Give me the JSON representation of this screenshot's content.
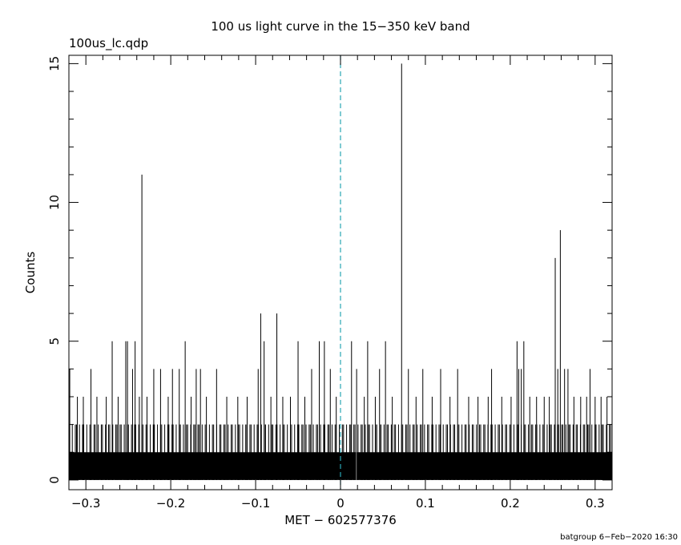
{
  "chart_data": {
    "type": "bar",
    "title": "100 us light curve in the 15−350 keV band",
    "file_label": "100us_lc.qdp",
    "xlabel": "MET − 602577376",
    "ylabel": "Counts",
    "footer": "batgroup  6−Feb−2020 16:30",
    "xlim": [
      -0.32,
      0.32
    ],
    "ylim": [
      -0.35,
      15.3
    ],
    "x_ticks": [
      -0.3,
      -0.2,
      -0.1,
      0,
      0.1,
      0.2,
      0.3
    ],
    "x_tick_labels": [
      "−0.3",
      "−0.2",
      "−0.1",
      "0",
      "0.1",
      "0.2",
      "0.3"
    ],
    "y_ticks": [
      0,
      5,
      10,
      15
    ],
    "y_tick_labels": [
      "0",
      "5",
      "10",
      "15"
    ],
    "bin_width": 0.0001,
    "baseline_counts": 1,
    "notable_bins": [
      {
        "x": -0.319,
        "y": 4
      },
      {
        "x": -0.31,
        "y": 3
      },
      {
        "x": -0.303,
        "y": 3
      },
      {
        "x": -0.294,
        "y": 4
      },
      {
        "x": -0.287,
        "y": 3
      },
      {
        "x": -0.276,
        "y": 3
      },
      {
        "x": -0.269,
        "y": 5
      },
      {
        "x": -0.262,
        "y": 3
      },
      {
        "x": -0.253,
        "y": 5
      },
      {
        "x": -0.251,
        "y": 5
      },
      {
        "x": -0.245,
        "y": 4
      },
      {
        "x": -0.242,
        "y": 5
      },
      {
        "x": -0.237,
        "y": 3
      },
      {
        "x": -0.234,
        "y": 11
      },
      {
        "x": -0.228,
        "y": 3
      },
      {
        "x": -0.22,
        "y": 4
      },
      {
        "x": -0.212,
        "y": 4
      },
      {
        "x": -0.203,
        "y": 3
      },
      {
        "x": -0.198,
        "y": 4
      },
      {
        "x": -0.19,
        "y": 4
      },
      {
        "x": -0.183,
        "y": 5
      },
      {
        "x": -0.176,
        "y": 3
      },
      {
        "x": -0.17,
        "y": 4
      },
      {
        "x": -0.165,
        "y": 4
      },
      {
        "x": -0.158,
        "y": 3
      },
      {
        "x": -0.146,
        "y": 4
      },
      {
        "x": -0.134,
        "y": 3
      },
      {
        "x": -0.121,
        "y": 3
      },
      {
        "x": -0.11,
        "y": 3
      },
      {
        "x": -0.097,
        "y": 4
      },
      {
        "x": -0.094,
        "y": 6
      },
      {
        "x": -0.09,
        "y": 5
      },
      {
        "x": -0.082,
        "y": 3
      },
      {
        "x": -0.075,
        "y": 6
      },
      {
        "x": -0.068,
        "y": 3
      },
      {
        "x": -0.059,
        "y": 3
      },
      {
        "x": -0.05,
        "y": 5
      },
      {
        "x": -0.042,
        "y": 3
      },
      {
        "x": -0.034,
        "y": 4
      },
      {
        "x": -0.025,
        "y": 5
      },
      {
        "x": -0.019,
        "y": 5
      },
      {
        "x": -0.012,
        "y": 4
      },
      {
        "x": -0.005,
        "y": 3
      },
      {
        "x": 0.013,
        "y": 5
      },
      {
        "x": 0.019,
        "y": 4
      },
      {
        "x": 0.028,
        "y": 3
      },
      {
        "x": 0.032,
        "y": 5
      },
      {
        "x": 0.041,
        "y": 3
      },
      {
        "x": 0.046,
        "y": 4
      },
      {
        "x": 0.053,
        "y": 5
      },
      {
        "x": 0.061,
        "y": 3
      },
      {
        "x": 0.072,
        "y": 15
      },
      {
        "x": 0.08,
        "y": 4
      },
      {
        "x": 0.089,
        "y": 3
      },
      {
        "x": 0.097,
        "y": 4
      },
      {
        "x": 0.108,
        "y": 3
      },
      {
        "x": 0.118,
        "y": 4
      },
      {
        "x": 0.129,
        "y": 3
      },
      {
        "x": 0.138,
        "y": 4
      },
      {
        "x": 0.151,
        "y": 3
      },
      {
        "x": 0.162,
        "y": 3
      },
      {
        "x": 0.174,
        "y": 3
      },
      {
        "x": 0.178,
        "y": 4
      },
      {
        "x": 0.19,
        "y": 3
      },
      {
        "x": 0.201,
        "y": 3
      },
      {
        "x": 0.208,
        "y": 5
      },
      {
        "x": 0.21,
        "y": 4
      },
      {
        "x": 0.213,
        "y": 4
      },
      {
        "x": 0.216,
        "y": 5
      },
      {
        "x": 0.223,
        "y": 3
      },
      {
        "x": 0.231,
        "y": 3
      },
      {
        "x": 0.24,
        "y": 3
      },
      {
        "x": 0.246,
        "y": 3
      },
      {
        "x": 0.253,
        "y": 8
      },
      {
        "x": 0.256,
        "y": 4
      },
      {
        "x": 0.259,
        "y": 9
      },
      {
        "x": 0.264,
        "y": 4
      },
      {
        "x": 0.268,
        "y": 4
      },
      {
        "x": 0.275,
        "y": 3
      },
      {
        "x": 0.283,
        "y": 3
      },
      {
        "x": 0.29,
        "y": 3
      },
      {
        "x": 0.294,
        "y": 4
      },
      {
        "x": 0.3,
        "y": 3
      },
      {
        "x": 0.307,
        "y": 3
      },
      {
        "x": 0.314,
        "y": 3
      }
    ],
    "zero_gap": [
      0.0185,
      0.019
    ],
    "trigger_marker": {
      "x": 0,
      "style": "dashed",
      "color": "#2aa6b5"
    },
    "grid": false,
    "bar_color": "#000000"
  }
}
